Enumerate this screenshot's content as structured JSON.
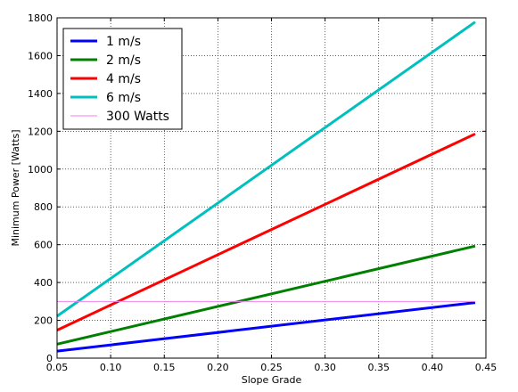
{
  "chart_data": {
    "type": "line",
    "title": "",
    "xlabel": "Slope Grade",
    "ylabel": "Minimum Power [Watts]",
    "xlim": [
      0.05,
      0.45
    ],
    "ylim": [
      0,
      1800
    ],
    "xticks": [
      0.05,
      0.1,
      0.15,
      0.2,
      0.25,
      0.3,
      0.35,
      0.4,
      0.45
    ],
    "xtick_labels": [
      "0.05",
      "0.10",
      "0.15",
      "0.20",
      "0.25",
      "0.30",
      "0.35",
      "0.40",
      "0.45"
    ],
    "yticks": [
      0,
      200,
      400,
      600,
      800,
      1000,
      1200,
      1400,
      1600,
      1800
    ],
    "ytick_labels": [
      "0",
      "200",
      "400",
      "600",
      "800",
      "1000",
      "1200",
      "1400",
      "1600",
      "1800"
    ],
    "grid": true,
    "legend_position": "top-left",
    "series": [
      {
        "name": "1 m/s",
        "color": "#0000ff",
        "x": [
          0.05,
          0.44
        ],
        "y": [
          37,
          294
        ]
      },
      {
        "name": "2 m/s",
        "color": "#008000",
        "x": [
          0.05,
          0.44
        ],
        "y": [
          74,
          593
        ]
      },
      {
        "name": "4 m/s",
        "color": "#ff0000",
        "x": [
          0.05,
          0.44
        ],
        "y": [
          148,
          1186
        ]
      },
      {
        "name": "6 m/s",
        "color": "#00bfbf",
        "x": [
          0.05,
          0.44
        ],
        "y": [
          222,
          1778
        ]
      },
      {
        "name": "300 Watts",
        "color": "#ee82ee",
        "x": [
          0.05,
          0.44
        ],
        "y": [
          300,
          300
        ]
      }
    ]
  }
}
